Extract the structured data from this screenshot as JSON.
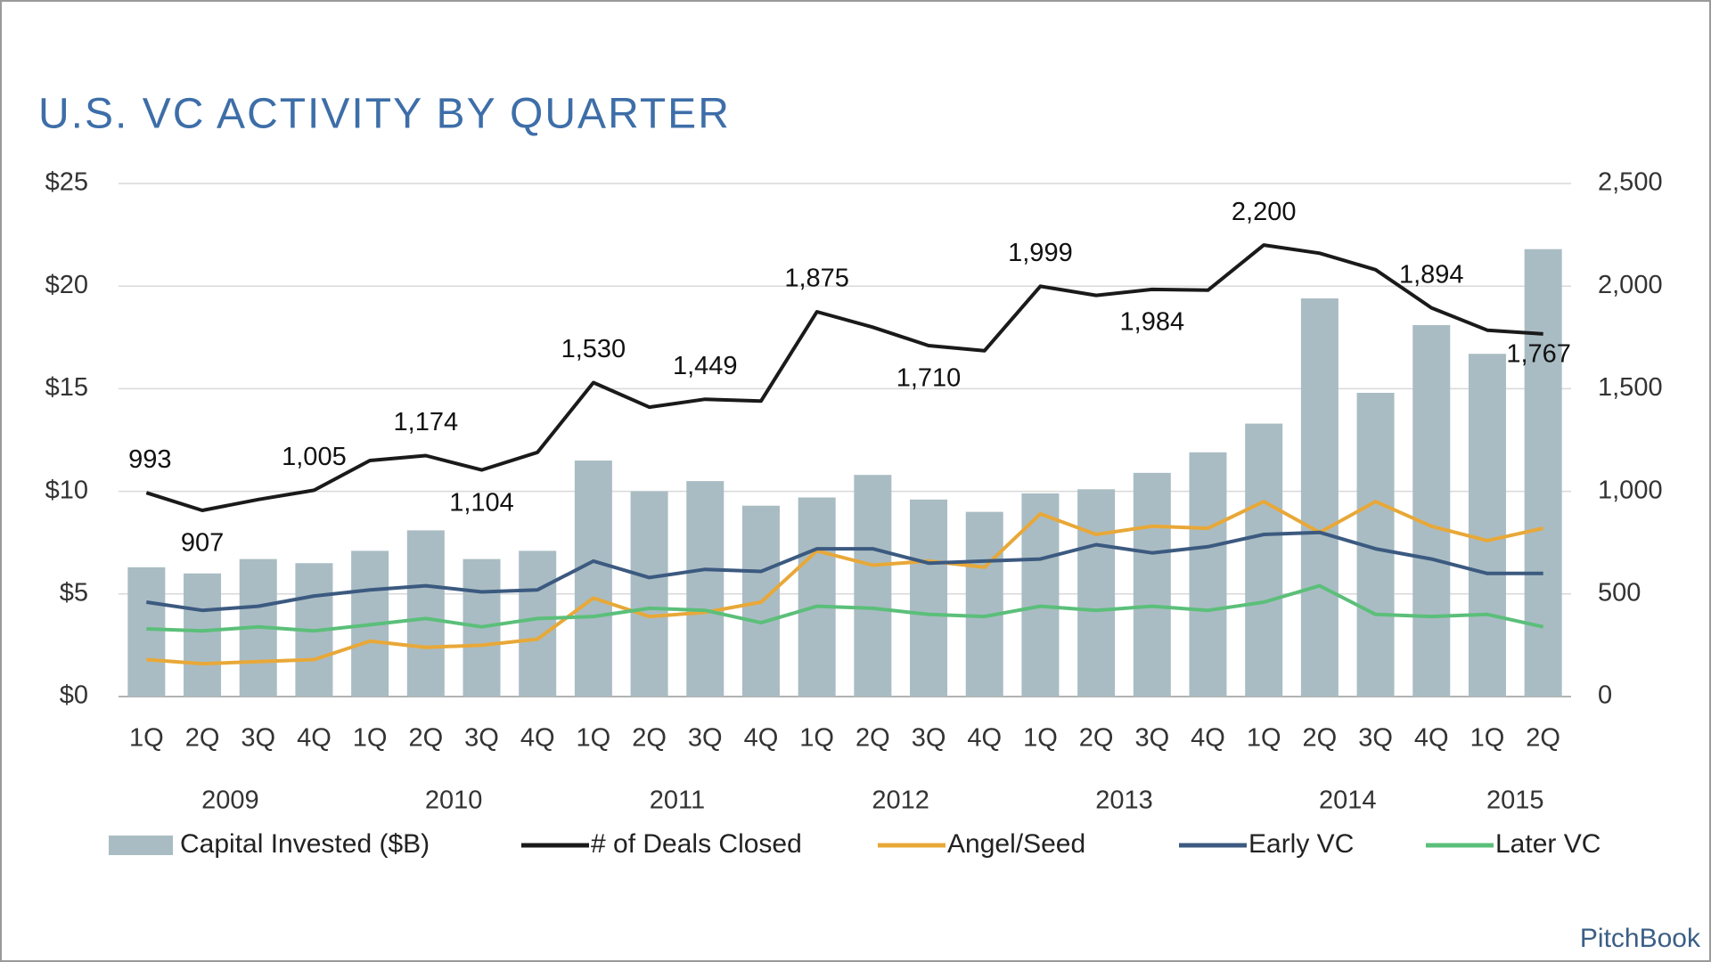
{
  "chart_data": {
    "type": "bar",
    "title": "U.S. VC ACTIVITY BY QUARTER",
    "categories": [
      "1Q",
      "2Q",
      "3Q",
      "4Q",
      "1Q",
      "2Q",
      "3Q",
      "4Q",
      "1Q",
      "2Q",
      "3Q",
      "4Q",
      "1Q",
      "2Q",
      "3Q",
      "4Q",
      "1Q",
      "2Q",
      "3Q",
      "4Q",
      "1Q",
      "2Q",
      "3Q",
      "4Q",
      "1Q",
      "2Q"
    ],
    "years": [
      "2009",
      "2010",
      "2011",
      "2012",
      "2013",
      "2014",
      "2015"
    ],
    "ylim": [
      0,
      25
    ],
    "yticks": [
      {
        "value": 0,
        "label": "$0"
      },
      {
        "value": 5,
        "label": "$5"
      },
      {
        "value": 10,
        "label": "$10"
      },
      {
        "value": 15,
        "label": "$15"
      },
      {
        "value": 20,
        "label": "$20"
      },
      {
        "value": 25,
        "label": "$25"
      }
    ],
    "y2lim": [
      0,
      2500
    ],
    "y2ticks": [
      0,
      500,
      {
        "value": 1000,
        "label": "1,000"
      },
      {
        "value": 1500,
        "label": "1,500"
      },
      {
        "value": 2000,
        "label": "2,000"
      },
      {
        "value": 2500,
        "label": "2,500"
      }
    ],
    "grid": true,
    "legend": "bottom",
    "branding": "PitchBook",
    "series": [
      {
        "name": "Capital Invested ($B)",
        "type": "bar",
        "color": "#a9bcc3",
        "values": [
          6.3,
          6.0,
          6.7,
          6.5,
          7.1,
          8.1,
          6.7,
          7.1,
          11.5,
          10.0,
          10.5,
          9.3,
          9.7,
          10.8,
          9.6,
          9.0,
          9.9,
          10.1,
          10.9,
          11.9,
          13.3,
          19.4,
          14.8,
          18.1,
          16.7,
          21.8
        ]
      },
      {
        "name": "# of Deals Closed",
        "type": "line",
        "axis": "y2",
        "color": "#1a1a1a",
        "values": [
          993,
          907,
          960,
          1005,
          1150,
          1174,
          1104,
          1190,
          1530,
          1410,
          1449,
          1440,
          1875,
          1800,
          1710,
          1685,
          1999,
          1955,
          1984,
          1980,
          2200,
          2160,
          2080,
          1894,
          1785,
          1767
        ],
        "value_labels": [
          "993",
          "907",
          null,
          "1,005",
          null,
          "1,174",
          "1,104",
          null,
          "1,530",
          null,
          "1,449",
          null,
          "1,875",
          null,
          "1,710",
          null,
          "1,999",
          null,
          "1,984",
          null,
          "2,200",
          null,
          null,
          "1,894",
          null,
          "1,767"
        ]
      },
      {
        "name": "Angel/Seed",
        "type": "line",
        "color": "#e8a838",
        "values": [
          1.8,
          1.6,
          1.7,
          1.8,
          2.7,
          2.4,
          2.5,
          2.8,
          4.8,
          3.9,
          4.1,
          4.6,
          7.1,
          6.4,
          6.6,
          6.3,
          8.9,
          7.9,
          8.3,
          8.2,
          9.5,
          8.0,
          9.5,
          8.3,
          7.6,
          8.2
        ]
      },
      {
        "name": "Early VC",
        "type": "line",
        "color": "#3c5a80",
        "values": [
          4.6,
          4.2,
          4.4,
          4.9,
          5.2,
          5.4,
          5.1,
          5.2,
          6.6,
          5.8,
          6.2,
          6.1,
          7.2,
          7.2,
          6.5,
          6.6,
          6.7,
          7.4,
          7.0,
          7.3,
          7.9,
          8.0,
          7.2,
          6.7,
          6.0,
          6.0
        ]
      },
      {
        "name": "Later VC",
        "type": "line",
        "color": "#5bbf7a",
        "values": [
          3.3,
          3.2,
          3.4,
          3.2,
          3.5,
          3.8,
          3.4,
          3.8,
          3.9,
          4.3,
          4.2,
          3.6,
          4.4,
          4.3,
          4.0,
          3.9,
          4.4,
          4.2,
          4.4,
          4.2,
          4.6,
          5.4,
          4.0,
          3.9,
          4.0,
          3.4
        ]
      }
    ]
  }
}
